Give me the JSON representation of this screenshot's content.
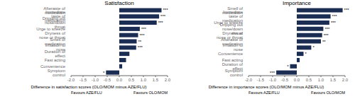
{
  "chart_data": [
    {
      "type": "bar",
      "orientation": "horizontal",
      "title": "Satisfaction",
      "categories": [
        "Afteraste of medication",
        "Immediate taste of medication",
        "Dripping out nose/down throat",
        "Urge to sneeze",
        "Dryness of nose or throat",
        "Smell of medication",
        "Irritation to nose",
        "Duration of effect",
        "Fast acting",
        "Convenience",
        "Symptom control"
      ],
      "values": [
        1.75,
        1.65,
        1.55,
        0.85,
        0.78,
        0.72,
        0.7,
        0.42,
        0.28,
        0.12,
        -0.55
      ],
      "bar_annotations": [
        "***",
        "***",
        "***",
        "***",
        "***",
        "**",
        "***",
        null,
        null,
        null,
        "*"
      ],
      "color": "#1b2d52",
      "xlim": [
        -2.0,
        2.0
      ],
      "xticks": [
        {
          "value": -2.0,
          "label": "-2.0"
        },
        -1.5,
        {
          "value": -1.0,
          "label": "-1.0"
        },
        -0.5,
        {
          "value": 0.0,
          "label": "0.0"
        },
        0.5,
        {
          "value": 1.0,
          "label": "1.0"
        },
        1.5,
        {
          "value": 2.0,
          "label": "2.0"
        }
      ],
      "xlabel": "Difference in satisfaction scores (OLO/MOM minus AZE/FLU)",
      "annotations": [
        "Favours AZE/FLU",
        "Favours OLO/MOM"
      ],
      "grid": false
    },
    {
      "type": "bar",
      "orientation": "horizontal",
      "title": "Importance",
      "categories": [
        "Smell of medication",
        "Immediate taste of medication",
        "Urge to sneeze",
        "Dripping out nose/down throat",
        "Dryness of nose or throat",
        "Afteraste of medication",
        "Irritation to nose",
        "Convenience",
        "Fast acting",
        "Duration of effect",
        "Symptom control"
      ],
      "values": [
        1.9,
        1.4,
        1.35,
        1.1,
        1.05,
        1.0,
        0.6,
        0.28,
        0.12,
        -0.28,
        -0.85
      ],
      "bar_annotations": [
        "***",
        "***",
        "***",
        "***",
        "***",
        "**",
        "*",
        "*",
        null,
        "*",
        "***"
      ],
      "color": "#1b2d52",
      "xlim": [
        -2.0,
        2.0
      ],
      "xticks": [
        {
          "value": -2.0,
          "label": "-2.0"
        },
        -1.5,
        {
          "value": -1.0,
          "label": "-1.0"
        },
        -0.5,
        {
          "value": 0.0,
          "label": "0.0"
        },
        0.5,
        {
          "value": 1.0,
          "label": "1.0"
        },
        1.5,
        {
          "value": 2.0,
          "label": "2.0"
        }
      ],
      "xlabel": "Difference in importance scores (OLO/MOM minus AZE/FLU)",
      "annotations": [
        "Favours AZE/FLU",
        "Favours OLO/MOM"
      ],
      "grid": false
    }
  ]
}
